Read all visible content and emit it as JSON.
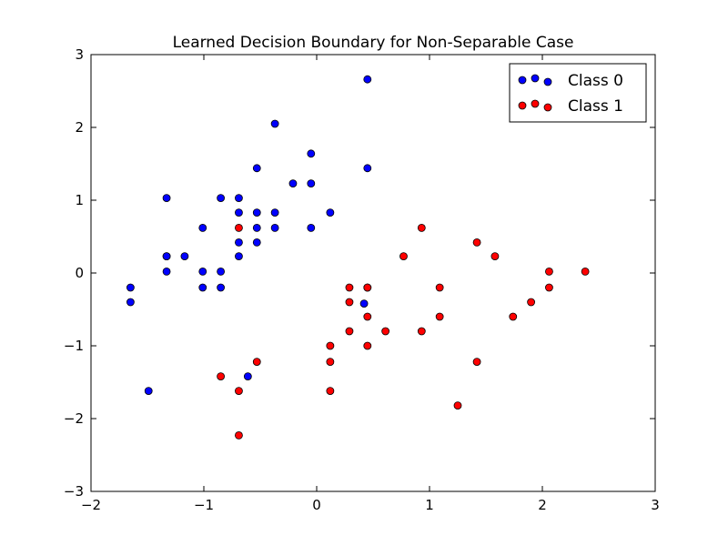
{
  "chart_data": {
    "type": "scatter",
    "title": "Learned Decision Boundary for Non-Separable Case",
    "xlabel": "",
    "ylabel": "",
    "xlim": [
      -2,
      3
    ],
    "ylim": [
      -3,
      3
    ],
    "xticks": [
      -2,
      -1,
      0,
      1,
      2,
      3
    ],
    "yticks": [
      -3,
      -2,
      -1,
      0,
      1,
      2,
      3
    ],
    "xtick_labels": [
      "−2",
      "−1",
      "0",
      "1",
      "2",
      "3"
    ],
    "ytick_labels": [
      "−3",
      "−2",
      "−1",
      "0",
      "1",
      "2",
      "3"
    ],
    "grid": false,
    "legend_position": "top-right",
    "series": [
      {
        "name": "Class 0",
        "color": "#0000ff",
        "x": [
          -1.65,
          -1.65,
          -1.49,
          -1.33,
          -1.33,
          -1.33,
          -1.33,
          -1.17,
          -1.01,
          -1.01,
          -1.01,
          -0.85,
          -0.85,
          -0.85,
          -0.69,
          -0.69,
          -0.69,
          -0.69,
          -0.61,
          -0.53,
          -0.53,
          -0.53,
          -0.53,
          -0.37,
          -0.37,
          -0.37,
          -0.21,
          -0.05,
          -0.05,
          -0.05,
          0.12,
          0.42,
          0.45,
          0.45
        ],
        "y": [
          -0.2,
          -0.4,
          -1.62,
          1.03,
          0.23,
          0.23,
          0.02,
          0.23,
          0.62,
          0.02,
          -0.2,
          1.03,
          0.02,
          -0.2,
          1.03,
          0.83,
          0.42,
          0.23,
          -1.42,
          1.44,
          0.83,
          0.62,
          0.42,
          2.05,
          0.83,
          0.62,
          1.23,
          1.64,
          1.23,
          0.62,
          0.83,
          -0.42,
          2.66,
          1.44
        ]
      },
      {
        "name": "Class 1",
        "color": "#ff0000",
        "x": [
          -0.85,
          -0.69,
          -0.69,
          -0.69,
          -0.53,
          0.12,
          0.12,
          0.12,
          0.29,
          0.29,
          0.29,
          0.45,
          0.45,
          0.45,
          0.45,
          0.61,
          0.77,
          0.93,
          0.93,
          1.09,
          1.09,
          1.25,
          1.42,
          1.42,
          1.58,
          1.74,
          1.9,
          2.06,
          2.06,
          2.38
        ],
        "y": [
          -1.42,
          0.62,
          -1.62,
          -2.23,
          -1.22,
          -1.0,
          -1.22,
          -1.62,
          -0.2,
          -0.4,
          -0.8,
          -0.2,
          -0.6,
          -1.0,
          -0.2,
          -0.8,
          0.23,
          0.62,
          -0.8,
          -0.2,
          -0.6,
          -1.82,
          0.42,
          -1.22,
          0.23,
          -0.6,
          -0.4,
          0.02,
          -0.2,
          0.02
        ]
      }
    ]
  }
}
